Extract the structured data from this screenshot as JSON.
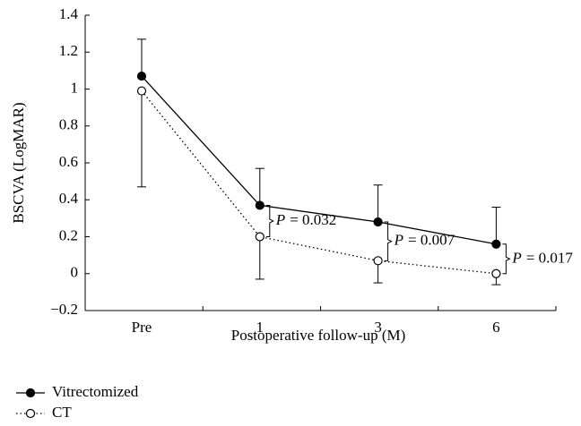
{
  "chart_data": {
    "type": "line",
    "ylabel": "BSCVA (LogMAR)",
    "xlabel": "Postoperative follow-up (M)",
    "categories": [
      "Pre",
      "1",
      "3",
      "6"
    ],
    "ylim": [
      -0.2,
      1.4
    ],
    "yticks": [
      {
        "value": -0.2,
        "label": "−0.2"
      },
      0,
      0.2,
      0.4,
      0.6,
      0.8,
      1,
      1.2,
      1.4
    ],
    "series": [
      {
        "name": "Vitrectomized",
        "color": "#000000",
        "linestyle": "solid",
        "marker": "filled",
        "error_direction": "up",
        "values": [
          1.07,
          0.37,
          0.28,
          0.16
        ],
        "errors": [
          0.2,
          0.2,
          0.2,
          0.2
        ]
      },
      {
        "name": "CT",
        "color": "#000000",
        "linestyle": "dotted",
        "marker": "open",
        "error_direction": "down",
        "values": [
          0.99,
          0.2,
          0.07,
          0.0
        ],
        "errors": [
          0.52,
          0.23,
          0.12,
          0.06
        ]
      }
    ],
    "annotations": [
      {
        "symbol": "P",
        "text": "= 0.032"
      },
      {
        "symbol": "P",
        "text": "= 0.007"
      },
      {
        "symbol": "P",
        "text": "= 0.017"
      }
    ],
    "legend": "bottom-left"
  }
}
